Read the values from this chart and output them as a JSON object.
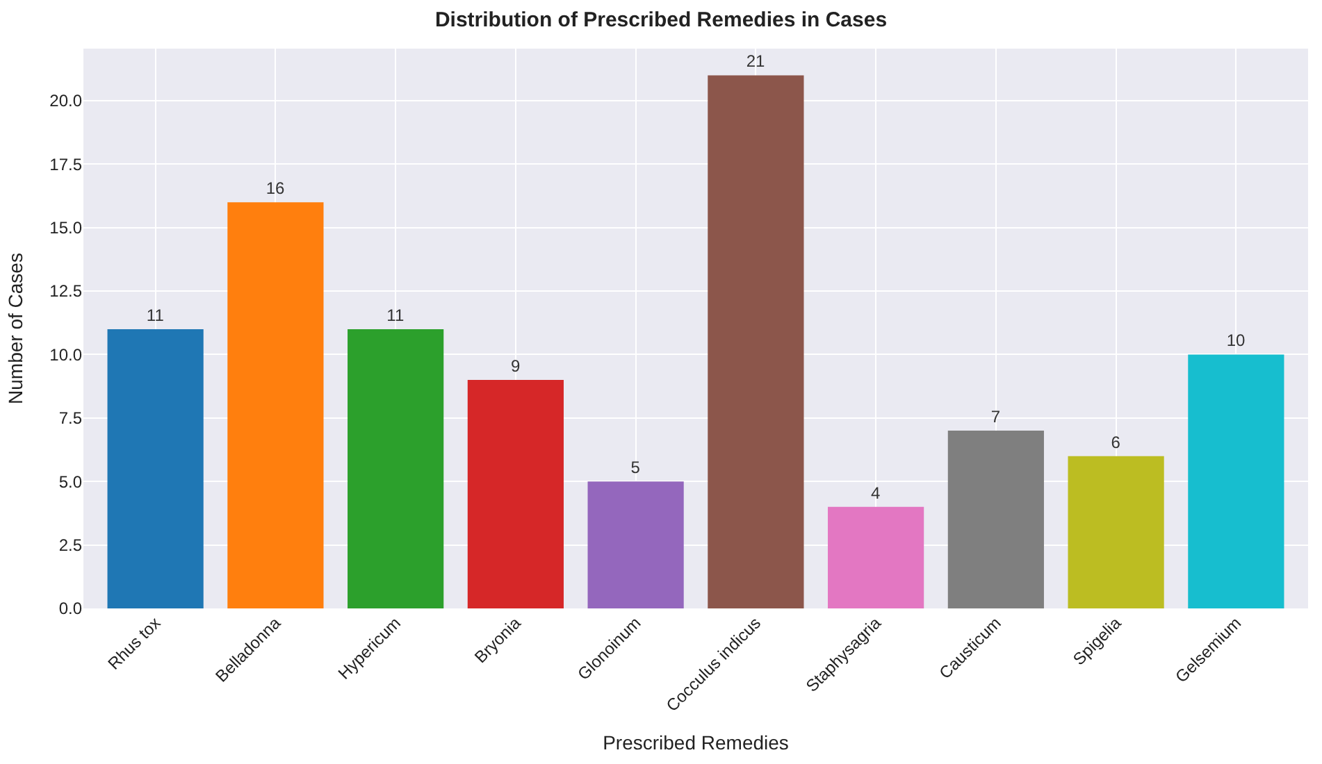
{
  "chart_data": {
    "type": "bar",
    "title": "Distribution of Prescribed Remedies in Cases",
    "xlabel": "Prescribed Remedies",
    "ylabel": "Number of Cases",
    "categories": [
      "Rhus tox",
      "Belladonna",
      "Hypericum",
      "Bryonia",
      "Glonoinum",
      "Cocculus indicus",
      "Staphysagria",
      "Causticum",
      "Spigelia",
      "Gelsemium"
    ],
    "values": [
      11,
      16,
      11,
      9,
      5,
      21,
      4,
      7,
      6,
      10
    ],
    "colors": [
      "#1f77b4",
      "#ff7f0e",
      "#2ca02c",
      "#d62728",
      "#9467bd",
      "#8c564b",
      "#e377c2",
      "#7f7f7f",
      "#bcbd22",
      "#17becf"
    ],
    "ylim": [
      0,
      22.05
    ],
    "yticks": [
      {
        "value": 0,
        "label": "0.0"
      },
      2.5,
      {
        "value": 5,
        "label": "5.0"
      },
      7.5,
      {
        "value": 10,
        "label": "10.0"
      },
      12.5,
      {
        "value": 15,
        "label": "15.0"
      },
      17.5,
      {
        "value": 20,
        "label": "20.0"
      }
    ],
    "grid": true,
    "data_labels": true
  }
}
